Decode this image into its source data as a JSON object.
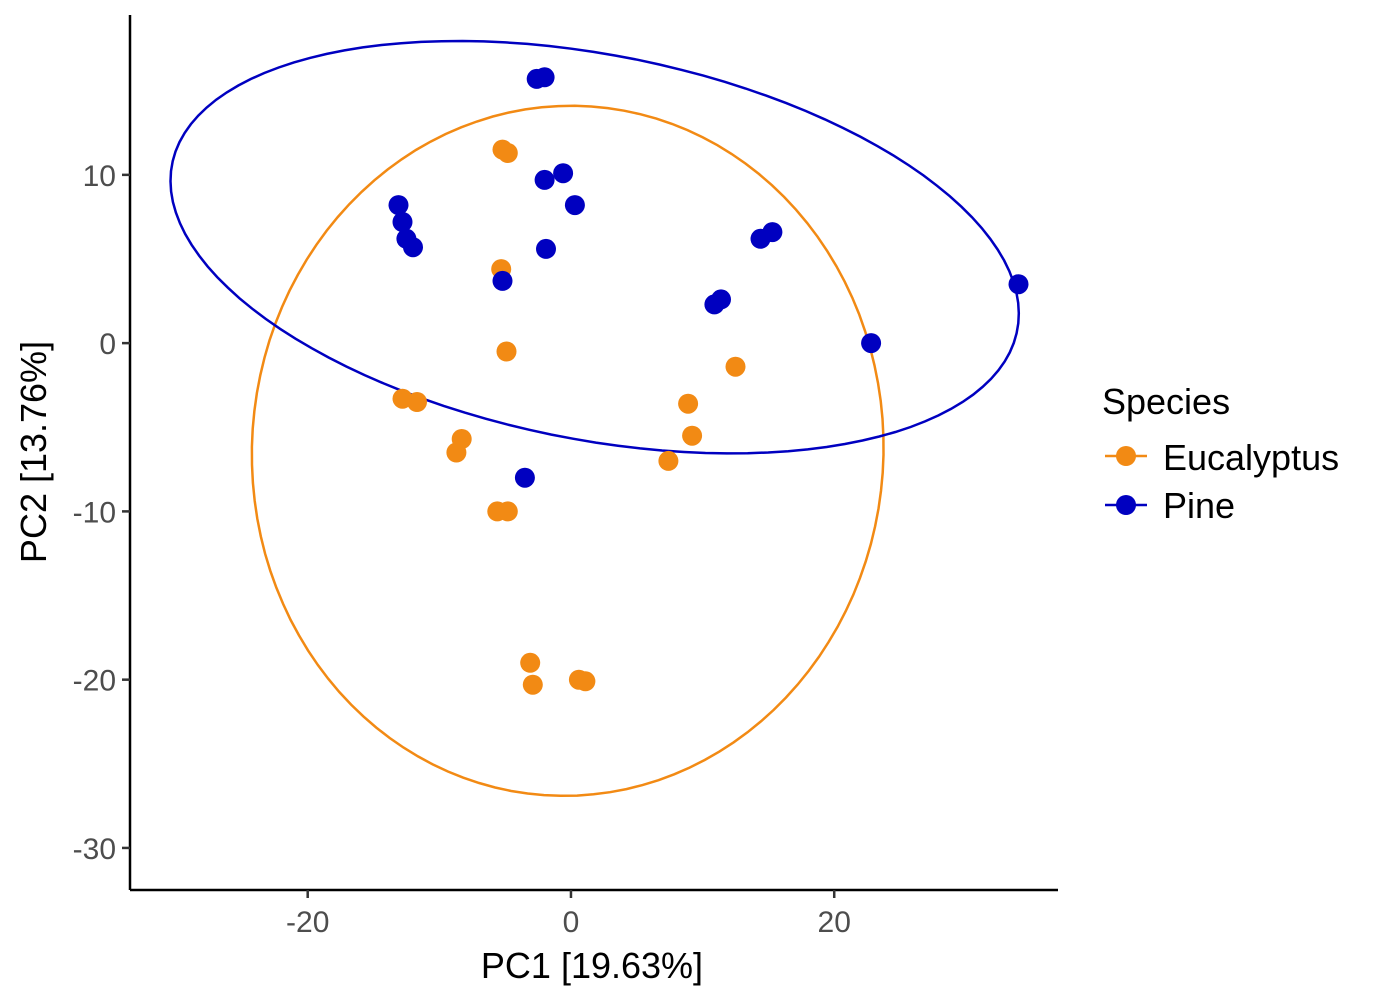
{
  "chart_data": {
    "type": "scatter",
    "xlabel": "PC1 [19.63%]",
    "ylabel": "PC2 [13.76%]",
    "xlim": [
      -33.5,
      37
    ],
    "ylim": [
      -32.5,
      19.5
    ],
    "xticks": [
      -20,
      0,
      20
    ],
    "xtick_labels": [
      "-20",
      "0",
      "20"
    ],
    "yticks": [
      10,
      0,
      -10,
      -20,
      -30
    ],
    "ytick_labels": [
      "10",
      "0",
      "-10",
      "-20",
      "-30"
    ],
    "grid": false,
    "legend": {
      "title": "Species",
      "position": "right",
      "entries": [
        "Eucalyptus",
        "Pine"
      ]
    },
    "series": [
      {
        "name": "Eucalyptus",
        "color": "#F28A14",
        "points": [
          [
            -5.2,
            11.5
          ],
          [
            -4.8,
            11.3
          ],
          [
            -5.3,
            4.4
          ],
          [
            -4.9,
            -0.5
          ],
          [
            -12.8,
            -3.3
          ],
          [
            -11.7,
            -3.5
          ],
          [
            -8.3,
            -5.7
          ],
          [
            -8.7,
            -6.5
          ],
          [
            -5.6,
            -10.0
          ],
          [
            -4.8,
            -10.0
          ],
          [
            -3.1,
            -19.0
          ],
          [
            -2.9,
            -20.3
          ],
          [
            0.6,
            -20.0
          ],
          [
            1.1,
            -20.1
          ],
          [
            8.9,
            -3.6
          ],
          [
            9.2,
            -5.5
          ],
          [
            7.4,
            -7.0
          ],
          [
            12.5,
            -1.4
          ]
        ],
        "ellipse": {
          "center": [
            -0.25,
            -6.4
          ],
          "semi_axes": [
            20.5,
            24.0
          ],
          "angle_deg": -88
        }
      },
      {
        "name": "Pine",
        "color": "#0000C0",
        "points": [
          [
            -2.6,
            15.7
          ],
          [
            -2.0,
            15.8
          ],
          [
            -2.0,
            9.7
          ],
          [
            -0.6,
            10.1
          ],
          [
            0.3,
            8.2
          ],
          [
            -13.1,
            8.2
          ],
          [
            -12.8,
            7.2
          ],
          [
            -12.5,
            6.2
          ],
          [
            -12.0,
            5.7
          ],
          [
            -1.9,
            5.6
          ],
          [
            -5.2,
            3.7
          ],
          [
            14.4,
            6.2
          ],
          [
            15.3,
            6.6
          ],
          [
            10.9,
            2.3
          ],
          [
            11.4,
            2.6
          ],
          [
            22.8,
            0.0
          ],
          [
            34.0,
            3.5
          ],
          [
            -3.5,
            -8.0
          ]
        ],
        "ellipse": {
          "center": [
            1.8,
            5.7
          ],
          "semi_axes": [
            32.5,
            11.5
          ],
          "angle_deg": -8
        }
      }
    ]
  }
}
